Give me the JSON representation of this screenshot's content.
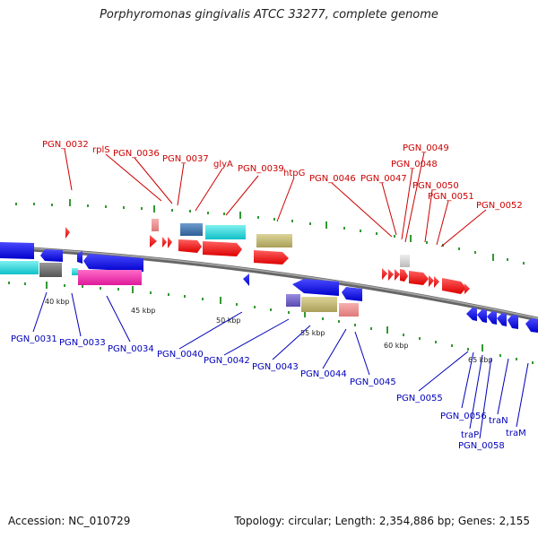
{
  "header": {
    "title": "Porphyromonas gingivalis ATCC 33277, complete genome"
  },
  "footer": {
    "accession": "Accession: NC_010729",
    "topology": "Topology: circular; Length: 2,354,886 bp; Genes: 2,155"
  },
  "colors": {
    "forward_label": "#cc0000",
    "reverse_label": "#0000bb",
    "backbone": "#777777",
    "ticks": "#228822"
  },
  "scale_labels": [
    "40 kbp",
    "45 kbp",
    "50 kbp",
    "55 kbp",
    "60 kbp",
    "65 kbp"
  ],
  "forward_gene_labels": [
    "PGN_0032",
    "rplS",
    "PGN_0036",
    "PGN_0037",
    "glyA",
    "PGN_0039",
    "htpG",
    "PGN_0046",
    "PGN_0047",
    "PGN_0048",
    "PGN_0049",
    "PGN_0050",
    "PGN_0051",
    "PGN_0052"
  ],
  "reverse_gene_labels": [
    "PGN_0031",
    "PGN_0033",
    "PGN_0034",
    "PGN_0040",
    "PGN_0042",
    "PGN_0043",
    "PGN_0044",
    "PGN_0045",
    "PGN_0055",
    "PGN_0056",
    "traP",
    "PGN_0058",
    "traN",
    "traM"
  ]
}
